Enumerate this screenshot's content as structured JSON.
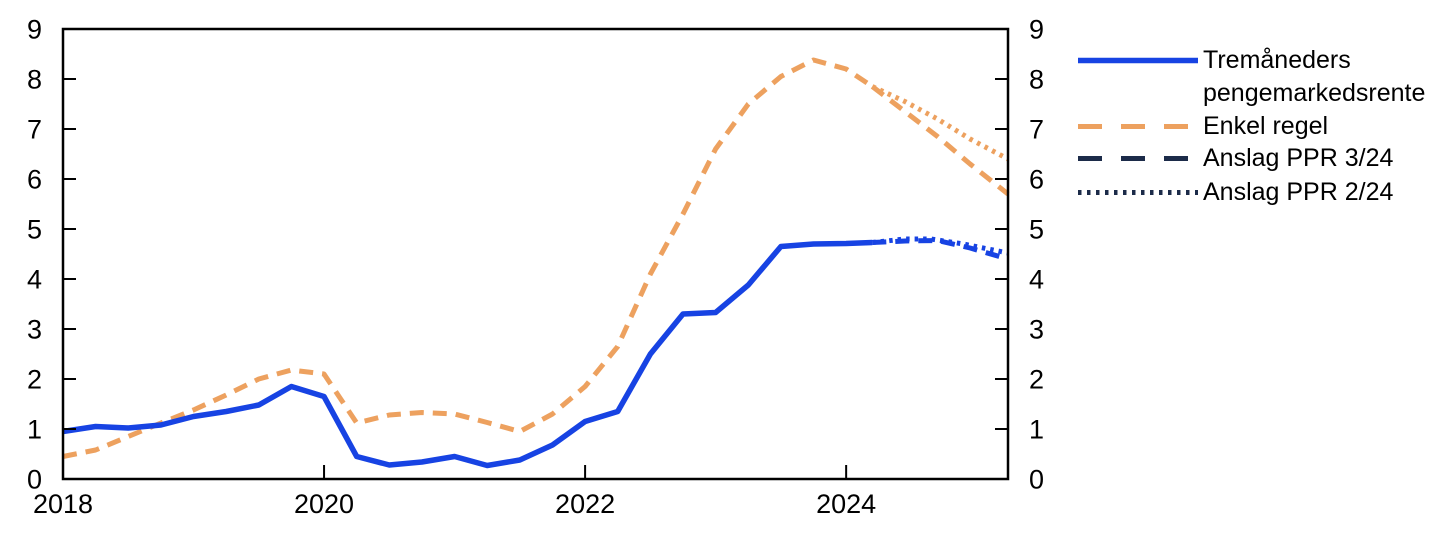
{
  "page": {
    "background": "#ffffff"
  },
  "chart_data": {
    "type": "line",
    "title": "",
    "xlabel": "",
    "ylabel": "",
    "grid": false,
    "legend_position": "right-outside",
    "x_axis": {
      "range": [
        2018,
        2025.24
      ],
      "ticks": [
        2018,
        2020,
        2022,
        2024
      ]
    },
    "y_axis": {
      "range": [
        0,
        9
      ],
      "ticks": [
        0,
        1,
        2,
        3,
        4,
        5,
        6,
        7,
        8,
        9
      ],
      "label_sides": "both"
    },
    "colors": {
      "money_market_blue": "#1743E3",
      "simple_rule_orange": "#EDA15F",
      "estimate_navy": "#1C2B49",
      "axis_black": "#000000"
    },
    "series": [
      {
        "id": "simple-rule",
        "name": "Enkel regel",
        "style": "dashed",
        "color": "#EDA15F",
        "points": [
          [
            2018,
            0.45
          ],
          [
            2018.25,
            0.58
          ],
          [
            2018.5,
            0.85
          ],
          [
            2018.75,
            1.12
          ],
          [
            2019,
            1.38
          ],
          [
            2019.25,
            1.68
          ],
          [
            2019.5,
            2.0
          ],
          [
            2019.75,
            2.18
          ],
          [
            2020,
            2.1
          ],
          [
            2020.25,
            1.12
          ],
          [
            2020.5,
            1.28
          ],
          [
            2020.75,
            1.33
          ],
          [
            2021,
            1.3
          ],
          [
            2021.25,
            1.13
          ],
          [
            2021.5,
            0.95
          ],
          [
            2021.75,
            1.3
          ],
          [
            2022,
            1.85
          ],
          [
            2022.25,
            2.65
          ],
          [
            2022.5,
            4.1
          ],
          [
            2022.75,
            5.3
          ],
          [
            2023,
            6.6
          ],
          [
            2023.25,
            7.5
          ],
          [
            2023.5,
            8.05
          ],
          [
            2023.75,
            8.38
          ],
          [
            2024,
            8.2
          ],
          [
            2024.2,
            7.85
          ]
        ]
      },
      {
        "id": "simple-rule-ppr-2-24",
        "name": "Enkel regel – Anslag PPR 2/24",
        "style": "dotted",
        "color": "#EDA15F",
        "points": [
          [
            2024.2,
            7.85
          ],
          [
            2024.45,
            7.55
          ],
          [
            2024.7,
            7.2
          ],
          [
            2024.95,
            6.8
          ],
          [
            2025.24,
            6.4
          ]
        ]
      },
      {
        "id": "simple-rule-ppr-3-24",
        "name": "Enkel regel – Anslag PPR 3/24",
        "style": "dashed",
        "color": "#EDA15F",
        "points": [
          [
            2024.2,
            7.85
          ],
          [
            2024.45,
            7.35
          ],
          [
            2024.7,
            6.85
          ],
          [
            2024.95,
            6.3
          ],
          [
            2025.24,
            5.7
          ]
        ]
      },
      {
        "id": "money-market-ppr-2-24",
        "name": "Tremåneders pengemarkedsrente – Anslag PPR 2/24",
        "style": "dotted",
        "color": "#1743E3",
        "points": [
          [
            2024.2,
            4.73
          ],
          [
            2024.45,
            4.8
          ],
          [
            2024.65,
            4.8
          ],
          [
            2024.9,
            4.7
          ],
          [
            2025.24,
            4.52
          ]
        ]
      },
      {
        "id": "money-market-ppr-3-24",
        "name": "Tremåneders pengemarkedsrente – Anslag PPR 3/24",
        "style": "dashed",
        "color": "#1743E3",
        "points": [
          [
            2024.2,
            4.73
          ],
          [
            2024.45,
            4.76
          ],
          [
            2024.7,
            4.77
          ],
          [
            2024.95,
            4.62
          ],
          [
            2025.24,
            4.4
          ]
        ]
      },
      {
        "id": "money-market-rate",
        "name": "Tremåneders pengemarkedsrente",
        "style": "solid",
        "color": "#1743E3",
        "points": [
          [
            2018,
            0.95
          ],
          [
            2018.25,
            1.05
          ],
          [
            2018.5,
            1.02
          ],
          [
            2018.75,
            1.08
          ],
          [
            2019,
            1.25
          ],
          [
            2019.25,
            1.35
          ],
          [
            2019.5,
            1.48
          ],
          [
            2019.75,
            1.85
          ],
          [
            2020,
            1.65
          ],
          [
            2020.25,
            0.45
          ],
          [
            2020.5,
            0.28
          ],
          [
            2020.75,
            0.34
          ],
          [
            2021,
            0.45
          ],
          [
            2021.25,
            0.27
          ],
          [
            2021.5,
            0.38
          ],
          [
            2021.75,
            0.68
          ],
          [
            2022,
            1.15
          ],
          [
            2022.25,
            1.35
          ],
          [
            2022.5,
            2.5
          ],
          [
            2022.75,
            3.3
          ],
          [
            2023,
            3.33
          ],
          [
            2023.25,
            3.88
          ],
          [
            2023.5,
            4.65
          ],
          [
            2023.75,
            4.7
          ],
          [
            2024,
            4.71
          ],
          [
            2024.2,
            4.73
          ]
        ]
      }
    ],
    "legend": [
      {
        "label_line1": "Tremåneders",
        "label_line2": "pengemarkedsrente",
        "style": "solid",
        "color": "#1743E3"
      },
      {
        "label": "Enkel regel",
        "style": "dashed",
        "color": "#EDA15F"
      },
      {
        "label": "Anslag PPR 3/24",
        "style": "dashed",
        "color": "#1C2B49"
      },
      {
        "label": "Anslag PPR 2/24",
        "style": "dotted",
        "color": "#1C2B49"
      }
    ]
  }
}
